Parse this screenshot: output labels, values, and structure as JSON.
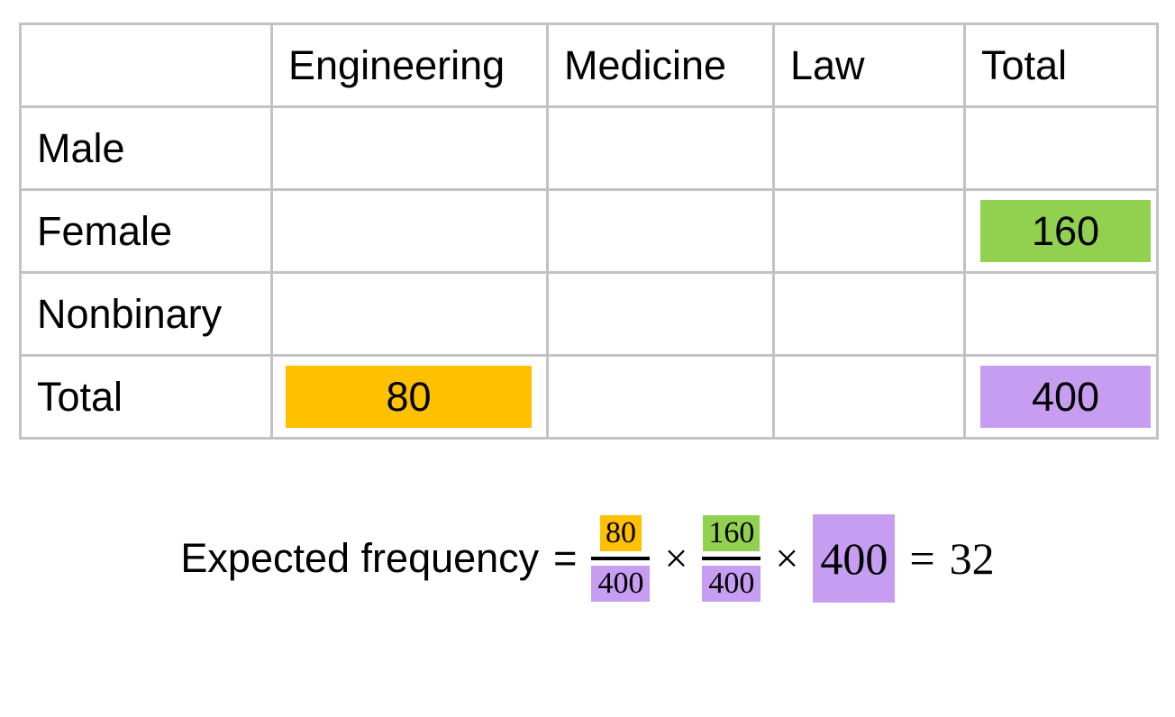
{
  "colors": {
    "orange": "#FFC000",
    "green": "#92D050",
    "purple": "#C79DF2",
    "grid": "#C3C3C3",
    "text": "#000000",
    "background": "#FFFFFF"
  },
  "table": {
    "headers": [
      "",
      "Engineering",
      "Medicine",
      "Law",
      "Total"
    ],
    "row_labels": [
      "Male",
      "Female",
      "Nonbinary",
      "Total"
    ],
    "values": {
      "female_total": "160",
      "total_engineering": "80",
      "total_total": "400"
    }
  },
  "formula": {
    "label": "Expected frequency",
    "eq1": "=",
    "frac1_num": "80",
    "frac1_den": "400",
    "times1": "×",
    "frac2_num": "160",
    "frac2_den": "400",
    "times2": "×",
    "grand_total": "400",
    "eq2": "=",
    "result": "32"
  }
}
